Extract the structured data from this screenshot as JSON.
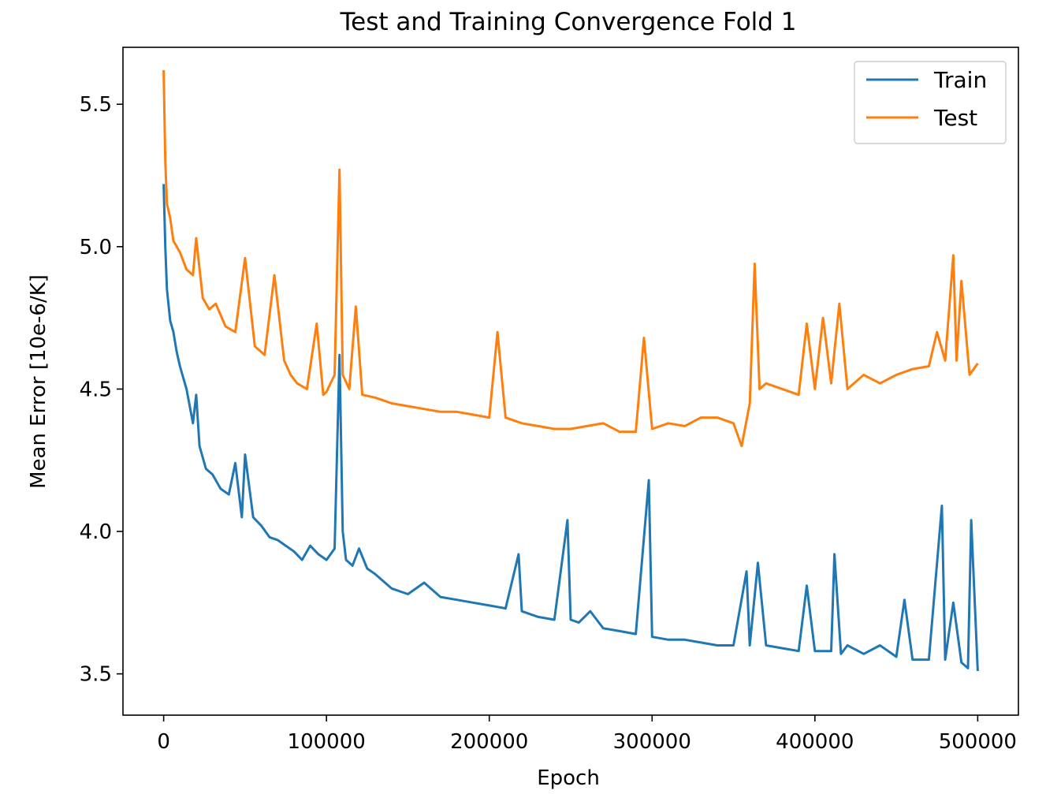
{
  "chart_data": {
    "type": "line",
    "title": "Test and Training Convergence Fold 1",
    "xlabel": "Epoch",
    "ylabel": "Mean Error [10e-6/K]",
    "xlim": [
      -25000,
      525000
    ],
    "ylim": [
      3.355,
      5.7
    ],
    "xticks": [
      0,
      100000,
      200000,
      300000,
      400000,
      500000
    ],
    "yticks": [
      3.5,
      4.0,
      4.5,
      5.0,
      5.5
    ],
    "legend_position": "upper-right",
    "grid": false,
    "colors": {
      "train": "#1f77b4",
      "test": "#ff7f0e"
    },
    "series": [
      {
        "name": "Train",
        "color": "#1f77b4",
        "x": [
          0,
          1000,
          2000,
          4000,
          6000,
          8000,
          10000,
          14000,
          18000,
          20000,
          22000,
          26000,
          30000,
          35000,
          40000,
          44000,
          48000,
          50000,
          55000,
          60000,
          65000,
          70000,
          75000,
          80000,
          85000,
          90000,
          95000,
          100000,
          105000,
          108000,
          110000,
          112000,
          116000,
          120000,
          125000,
          130000,
          140000,
          150000,
          160000,
          170000,
          180000,
          190000,
          200000,
          210000,
          218000,
          220000,
          230000,
          240000,
          248000,
          250000,
          255000,
          262000,
          270000,
          280000,
          290000,
          298000,
          300000,
          310000,
          320000,
          330000,
          340000,
          350000,
          358000,
          360000,
          365000,
          370000,
          380000,
          390000,
          395000,
          400000,
          410000,
          412000,
          416000,
          420000,
          430000,
          440000,
          450000,
          455000,
          460000,
          470000,
          478000,
          480000,
          485000,
          490000,
          494000,
          496000,
          500000
        ],
        "y": [
          5.22,
          5.0,
          4.85,
          4.74,
          4.7,
          4.63,
          4.58,
          4.5,
          4.38,
          4.48,
          4.3,
          4.22,
          4.2,
          4.15,
          4.13,
          4.24,
          4.05,
          4.27,
          4.05,
          4.02,
          3.98,
          3.97,
          3.95,
          3.93,
          3.9,
          3.95,
          3.92,
          3.9,
          3.94,
          4.62,
          4.0,
          3.9,
          3.88,
          3.94,
          3.87,
          3.85,
          3.8,
          3.78,
          3.82,
          3.77,
          3.76,
          3.75,
          3.74,
          3.73,
          3.92,
          3.72,
          3.7,
          3.69,
          4.04,
          3.69,
          3.68,
          3.72,
          3.66,
          3.65,
          3.64,
          4.18,
          3.63,
          3.62,
          3.62,
          3.61,
          3.6,
          3.6,
          3.86,
          3.6,
          3.89,
          3.6,
          3.59,
          3.58,
          3.81,
          3.58,
          3.58,
          3.92,
          3.57,
          3.6,
          3.57,
          3.6,
          3.56,
          3.76,
          3.55,
          3.55,
          4.09,
          3.55,
          3.75,
          3.54,
          3.52,
          4.04,
          3.51
        ]
      },
      {
        "name": "Test",
        "color": "#ff7f0e",
        "x": [
          0,
          1000,
          2000,
          4000,
          6000,
          8000,
          10000,
          14000,
          18000,
          20000,
          24000,
          28000,
          32000,
          38000,
          44000,
          50000,
          56000,
          62000,
          68000,
          74000,
          78000,
          82000,
          88000,
          94000,
          98000,
          100000,
          105000,
          108000,
          110000,
          114000,
          118000,
          122000,
          130000,
          140000,
          150000,
          160000,
          170000,
          180000,
          190000,
          200000,
          205000,
          210000,
          220000,
          230000,
          240000,
          250000,
          260000,
          270000,
          280000,
          290000,
          295000,
          300000,
          310000,
          320000,
          330000,
          340000,
          350000,
          355000,
          360000,
          363000,
          366000,
          370000,
          380000,
          390000,
          395000,
          400000,
          405000,
          410000,
          415000,
          420000,
          430000,
          440000,
          450000,
          460000,
          470000,
          475000,
          480000,
          485000,
          487000,
          490000,
          495000,
          500000
        ],
        "y": [
          5.62,
          5.3,
          5.15,
          5.1,
          5.02,
          5.0,
          4.98,
          4.92,
          4.9,
          5.03,
          4.82,
          4.78,
          4.8,
          4.72,
          4.7,
          4.96,
          4.65,
          4.62,
          4.9,
          4.6,
          4.55,
          4.52,
          4.5,
          4.73,
          4.48,
          4.49,
          4.55,
          5.27,
          4.55,
          4.5,
          4.79,
          4.48,
          4.47,
          4.45,
          4.44,
          4.43,
          4.42,
          4.42,
          4.41,
          4.4,
          4.7,
          4.4,
          4.38,
          4.37,
          4.36,
          4.36,
          4.37,
          4.38,
          4.35,
          4.35,
          4.68,
          4.36,
          4.38,
          4.37,
          4.4,
          4.4,
          4.38,
          4.3,
          4.45,
          4.94,
          4.5,
          4.52,
          4.5,
          4.48,
          4.73,
          4.5,
          4.75,
          4.52,
          4.8,
          4.5,
          4.55,
          4.52,
          4.55,
          4.57,
          4.58,
          4.7,
          4.6,
          4.97,
          4.6,
          4.88,
          4.55,
          4.59
        ]
      }
    ]
  }
}
